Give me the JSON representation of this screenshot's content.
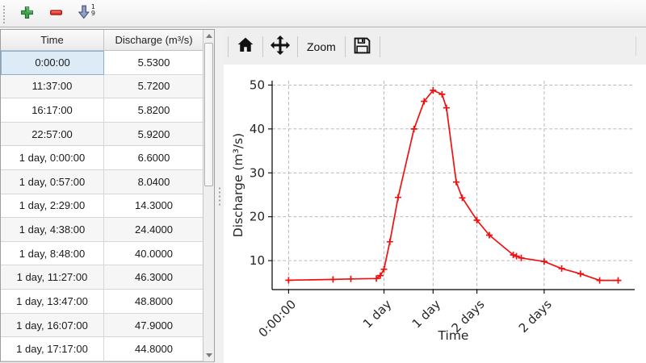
{
  "main_toolbar": {
    "buttons": [
      {
        "name": "add-row",
        "icon": "plus-icon",
        "color": "#3fa34d"
      },
      {
        "name": "remove-row",
        "icon": "minus-icon",
        "color": "#ee3124"
      },
      {
        "name": "sort-ascending",
        "icon": "sort-ascending-1-9-icon",
        "color": "#93a0c8"
      }
    ],
    "sort_button": {
      "top_digit": "1",
      "bottom_digit": "9"
    }
  },
  "table": {
    "columns": [
      "Time",
      "Discharge (m³/s)"
    ],
    "rows": [
      [
        "0:00:00",
        "5.5300"
      ],
      [
        "11:37:00",
        "5.7200"
      ],
      [
        "16:17:00",
        "5.8200"
      ],
      [
        "22:57:00",
        "5.9200"
      ],
      [
        "1 day, 0:00:00",
        "6.6000"
      ],
      [
        "1 day, 0:57:00",
        "8.0400"
      ],
      [
        "1 day, 2:29:00",
        "14.3000"
      ],
      [
        "1 day, 4:38:00",
        "24.4000"
      ],
      [
        "1 day, 8:48:00",
        "40.0000"
      ],
      [
        "1 day, 11:27:00",
        "46.3000"
      ],
      [
        "1 day, 13:47:00",
        "48.8000"
      ],
      [
        "1 day, 16:07:00",
        "47.9000"
      ],
      [
        "1 day, 17:17:00",
        "44.8000"
      ]
    ],
    "selected_cell": {
      "row": 0,
      "col": 0
    }
  },
  "chart_toolbar": {
    "icons": [
      "home-icon",
      "pan-icon",
      "save-icon"
    ],
    "zoom_label": "Zoom"
  },
  "chart_data": {
    "type": "line",
    "title": "",
    "xlabel": "Time",
    "ylabel": "Discharge (m³/s)",
    "x_hours": [
      0,
      11.62,
      16.28,
      22.95,
      24,
      24.95,
      26.48,
      28.63,
      32.8,
      35.45,
      37.78,
      40.12,
      41.28,
      43.83,
      45.42,
      49.25,
      52.5,
      58.75,
      59.58,
      60.83,
      66.83,
      71.42,
      76.33,
      81.33,
      86.17
    ],
    "values": [
      5.53,
      5.72,
      5.82,
      5.92,
      6.6,
      8.04,
      14.3,
      24.4,
      40.0,
      46.3,
      48.8,
      47.9,
      44.8,
      27.9,
      24.3,
      19.2,
      15.8,
      11.3,
      11.0,
      10.6,
      9.8,
      8.2,
      7.0,
      5.5,
      5.5
    ],
    "xtick_indices": [
      0,
      5,
      10,
      15,
      20
    ],
    "xtick_labels": [
      "0:00:00",
      "1 day",
      "1 day",
      "2 days",
      "2 days"
    ],
    "yticks": [
      10,
      20,
      30,
      40,
      50
    ],
    "xlim_hours": [
      -4.3,
      90.5
    ],
    "ylim": [
      3.4,
      51.0
    ],
    "line_color": "#f01010",
    "marker": "plus",
    "grid": "dashed",
    "grid_color": "#b0b0b0",
    "legend": "none"
  }
}
